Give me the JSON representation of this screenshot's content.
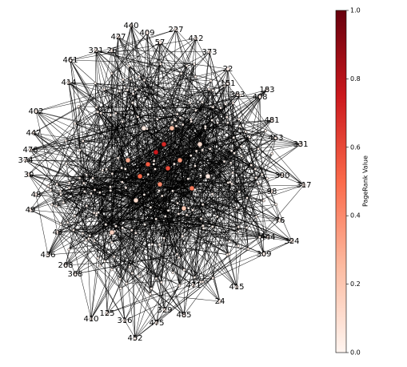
{
  "chart_data": {
    "type": "network",
    "colorbar_label": "PageRank Value",
    "clim": [
      0,
      1
    ],
    "cticks": [
      {
        "value": 0,
        "label": "0.0"
      },
      {
        "value": 0.2,
        "label": "0.2"
      },
      {
        "value": 0.4,
        "label": "0.4"
      },
      {
        "value": 0.6,
        "label": "0.6"
      },
      {
        "value": 0.8,
        "label": "0.8"
      },
      {
        "value": 1,
        "label": "1.0"
      }
    ],
    "colormap": [
      "#fff5f0",
      "#fcbba1",
      "#fb6a4a",
      "#cb181d",
      "#67000d"
    ],
    "nodes": [
      {
        "label": "440",
        "value": 0.02
      },
      {
        "label": "227",
        "value": 0.02
      },
      {
        "label": "409",
        "value": 0.02
      },
      {
        "label": "427",
        "value": 0.02
      },
      {
        "label": "57",
        "value": 0.03
      },
      {
        "label": "412",
        "value": 0.02
      },
      {
        "label": "373",
        "value": 0.02
      },
      {
        "label": "321",
        "value": 0.02
      },
      {
        "label": "26",
        "value": 0.03
      },
      {
        "label": "461",
        "value": 0.02
      },
      {
        "label": "22",
        "value": 0.02
      },
      {
        "label": "151",
        "value": 0.03
      },
      {
        "label": "414",
        "value": 0.03
      },
      {
        "label": "183",
        "value": 0.02
      },
      {
        "label": "383",
        "value": 0.03
      },
      {
        "label": "408",
        "value": 0.02
      },
      {
        "label": "402",
        "value": 0.02
      },
      {
        "label": "481",
        "value": 0.02
      },
      {
        "label": "447",
        "value": 0.02
      },
      {
        "label": "453",
        "value": 0.03
      },
      {
        "label": "331",
        "value": 0.02
      },
      {
        "label": "476",
        "value": 0.02
      },
      {
        "label": "374",
        "value": 0.02
      },
      {
        "label": "30",
        "value": 0.03
      },
      {
        "label": "390",
        "value": 0.02
      },
      {
        "label": "317",
        "value": 0.02
      },
      {
        "label": "48",
        "value": 0.03
      },
      {
        "label": "49",
        "value": 0.02
      },
      {
        "label": "98",
        "value": 0.03
      },
      {
        "label": "76",
        "value": 0.02
      },
      {
        "label": "444",
        "value": 0.02
      },
      {
        "label": "324",
        "value": 0.02
      },
      {
        "label": "46",
        "value": 0.03
      },
      {
        "label": "309",
        "value": 0.02
      },
      {
        "label": "436",
        "value": 0.02
      },
      {
        "label": "268",
        "value": 0.02
      },
      {
        "label": "368",
        "value": 0.02
      },
      {
        "label": "415",
        "value": 0.02
      },
      {
        "label": "471",
        "value": 0.03
      },
      {
        "label": "24",
        "value": 0.02
      },
      {
        "label": "329",
        "value": 0.02
      },
      {
        "label": "485",
        "value": 0.02
      },
      {
        "label": "475",
        "value": 0.02
      },
      {
        "label": "410",
        "value": 0.02
      },
      {
        "label": "125",
        "value": 0.02
      },
      {
        "label": "316",
        "value": 0.02
      },
      {
        "label": "452",
        "value": 0.02
      },
      {
        "label": null,
        "value": 0.75
      },
      {
        "label": null,
        "value": 0.6
      },
      {
        "label": null,
        "value": 0.55
      },
      {
        "label": null,
        "value": 0.7
      },
      {
        "label": null,
        "value": 0.45
      },
      {
        "label": null,
        "value": 0.5
      },
      {
        "label": null,
        "value": 0.35
      },
      {
        "label": null,
        "value": 0.4
      },
      {
        "label": null,
        "value": 0.3
      },
      {
        "label": null,
        "value": 0.25
      },
      {
        "label": null,
        "value": 0.2
      },
      {
        "label": null,
        "value": 0.15
      },
      {
        "label": null,
        "value": 0.1
      },
      {
        "label": null,
        "value": 0.1
      },
      {
        "label": null,
        "value": 0.05
      },
      {
        "label": null,
        "value": 0.05
      }
    ]
  }
}
